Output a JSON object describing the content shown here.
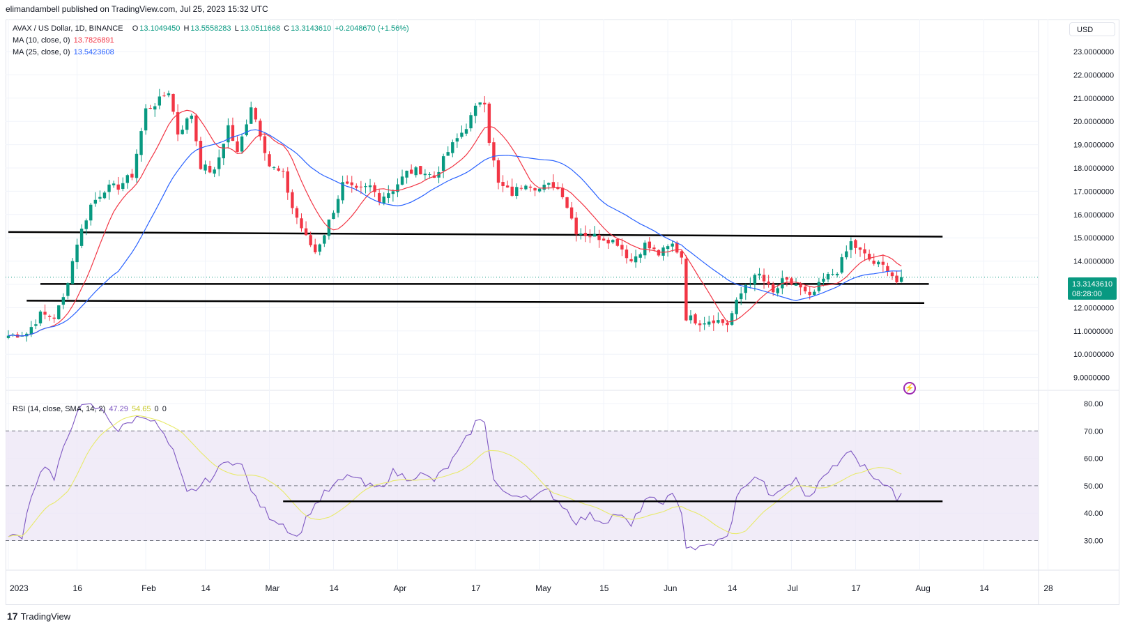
{
  "publisher_text": "elimandambell published on TradingView.com, Jul 25, 2023 15:32 UTC",
  "brand": "TradingView",
  "currency": "USD",
  "legend": {
    "symbol": "AVAX / US Dollar, 1D, BINANCE",
    "open_label": "O",
    "open": "13.1049450",
    "high_label": "H",
    "high": "13.5558283",
    "low_label": "L",
    "low": "13.0511668",
    "close_label": "C",
    "close": "13.3143610",
    "change": "+0.2048670 (+1.56%)",
    "ma10_label": "MA (10, close, 0)",
    "ma10_value": "13.7826891",
    "ma25_label": "MA (25, close, 0)",
    "ma25_value": "13.5423608",
    "rsi_label": "RSI (14, close, SMA, 14, 2)",
    "rsi_value": "47.29",
    "rsi_sma_value": "54.65",
    "rsi_extra1": "0",
    "rsi_extra2": "0"
  },
  "price_tag": {
    "price": "13.3143610",
    "countdown": "08:28:00"
  },
  "colors": {
    "up": "#089981",
    "down": "#f23645",
    "ma10": "#f23645",
    "ma25": "#2962ff",
    "rsi": "#7e57c2",
    "rsi_sma": "#e8ea6a",
    "rsi_band": "#ede7f6",
    "support": "#000000"
  },
  "chart_data": [
    {
      "type": "candlestick",
      "title": "AVAX / US Dollar, 1D, BINANCE",
      "y_ticks": [
        "23.0000000",
        "22.0000000",
        "21.0000000",
        "20.0000000",
        "19.0000000",
        "18.0000000",
        "17.0000000",
        "16.0000000",
        "15.0000000",
        "14.0000000",
        "13.0000000",
        "12.0000000",
        "11.0000000",
        "10.0000000",
        "9.0000000"
      ],
      "ylim": [
        9,
        23
      ],
      "x_ticks": [
        "2023",
        "16",
        "Feb",
        "14",
        "Mar",
        "14",
        "Apr",
        "17",
        "May",
        "15",
        "Jun",
        "14",
        "Jul",
        "17",
        "Aug",
        "14",
        "28"
      ],
      "close_anchors": [
        {
          "day": 0,
          "close": 10.8
        },
        {
          "day": 4,
          "close": 10.9
        },
        {
          "day": 7,
          "close": 11.7
        },
        {
          "day": 10,
          "close": 11.6
        },
        {
          "day": 12,
          "close": 12.4
        },
        {
          "day": 15,
          "close": 14.8
        },
        {
          "day": 18,
          "close": 16.4
        },
        {
          "day": 21,
          "close": 17.1
        },
        {
          "day": 24,
          "close": 17.2
        },
        {
          "day": 27,
          "close": 17.7
        },
        {
          "day": 30,
          "close": 20.5
        },
        {
          "day": 33,
          "close": 20.9
        },
        {
          "day": 35,
          "close": 21.3
        },
        {
          "day": 37,
          "close": 19.5
        },
        {
          "day": 40,
          "close": 20.3
        },
        {
          "day": 42,
          "close": 18.1
        },
        {
          "day": 45,
          "close": 17.8
        },
        {
          "day": 48,
          "close": 19.8
        },
        {
          "day": 50,
          "close": 18.6
        },
        {
          "day": 53,
          "close": 20.7
        },
        {
          "day": 55,
          "close": 19.5
        },
        {
          "day": 57,
          "close": 18.1
        },
        {
          "day": 60,
          "close": 17.7
        },
        {
          "day": 62,
          "close": 16.3
        },
        {
          "day": 65,
          "close": 15.0
        },
        {
          "day": 67,
          "close": 14.4
        },
        {
          "day": 69,
          "close": 15.2
        },
        {
          "day": 71,
          "close": 16.2
        },
        {
          "day": 73,
          "close": 17.3
        },
        {
          "day": 76,
          "close": 17.0
        },
        {
          "day": 79,
          "close": 17.2
        },
        {
          "day": 81,
          "close": 16.7
        },
        {
          "day": 84,
          "close": 17.1
        },
        {
          "day": 87,
          "close": 17.8
        },
        {
          "day": 90,
          "close": 17.9
        },
        {
          "day": 93,
          "close": 17.6
        },
        {
          "day": 96,
          "close": 18.7
        },
        {
          "day": 100,
          "close": 19.8
        },
        {
          "day": 103,
          "close": 20.9
        },
        {
          "day": 104,
          "close": 20.9
        },
        {
          "day": 105,
          "close": 19.2
        },
        {
          "day": 107,
          "close": 17.3
        },
        {
          "day": 110,
          "close": 16.9
        },
        {
          "day": 113,
          "close": 17.4
        },
        {
          "day": 116,
          "close": 17.1
        },
        {
          "day": 119,
          "close": 17.3
        },
        {
          "day": 121,
          "close": 16.9
        },
        {
          "day": 124,
          "close": 15.3
        },
        {
          "day": 127,
          "close": 15.1
        },
        {
          "day": 130,
          "close": 15.0
        },
        {
          "day": 133,
          "close": 14.8
        },
        {
          "day": 136,
          "close": 14.0
        },
        {
          "day": 139,
          "close": 14.7
        },
        {
          "day": 142,
          "close": 14.3
        },
        {
          "day": 145,
          "close": 14.7
        },
        {
          "day": 147,
          "close": 14.2
        },
        {
          "day": 148,
          "close": 11.6
        },
        {
          "day": 151,
          "close": 11.4
        },
        {
          "day": 154,
          "close": 11.5
        },
        {
          "day": 157,
          "close": 11.3
        },
        {
          "day": 159,
          "close": 12.2
        },
        {
          "day": 161,
          "close": 13.0
        },
        {
          "day": 164,
          "close": 13.4
        },
        {
          "day": 167,
          "close": 12.6
        },
        {
          "day": 169,
          "close": 13.1
        },
        {
          "day": 172,
          "close": 13.0
        },
        {
          "day": 175,
          "close": 12.4
        },
        {
          "day": 178,
          "close": 13.2
        },
        {
          "day": 181,
          "close": 13.6
        },
        {
          "day": 184,
          "close": 14.8
        },
        {
          "day": 186,
          "close": 14.4
        },
        {
          "day": 189,
          "close": 13.9
        },
        {
          "day": 192,
          "close": 13.7
        },
        {
          "day": 194,
          "close": 13.1
        },
        {
          "day": 195,
          "close": 13.31
        }
      ],
      "support_lines": [
        {
          "from_day": 0,
          "from": 15.25,
          "to_day": 204,
          "to": 15.05
        },
        {
          "from_day": 7,
          "from": 13.02,
          "to_day": 201,
          "to": 13.02
        },
        {
          "from_day": 4,
          "from": 12.3,
          "to_day": 200,
          "to": 12.2
        }
      ]
    },
    {
      "type": "line",
      "title": "RSI (14, close, SMA, 14, 2)",
      "y_ticks": [
        "80.00",
        "70.00",
        "60.00",
        "50.00",
        "40.00",
        "30.00"
      ],
      "ylim": [
        26,
        83
      ],
      "band": [
        30,
        70
      ],
      "midline": 50,
      "rsi_anchors": [
        {
          "day": 0,
          "v": 31
        },
        {
          "day": 3,
          "v": 32
        },
        {
          "day": 5,
          "v": 47
        },
        {
          "day": 8,
          "v": 58
        },
        {
          "day": 10,
          "v": 52
        },
        {
          "day": 12,
          "v": 63
        },
        {
          "day": 15,
          "v": 78
        },
        {
          "day": 18,
          "v": 79
        },
        {
          "day": 21,
          "v": 77
        },
        {
          "day": 24,
          "v": 70
        },
        {
          "day": 27,
          "v": 74
        },
        {
          "day": 30,
          "v": 76
        },
        {
          "day": 33,
          "v": 71
        },
        {
          "day": 36,
          "v": 62
        },
        {
          "day": 39,
          "v": 47
        },
        {
          "day": 42,
          "v": 50
        },
        {
          "day": 45,
          "v": 54
        },
        {
          "day": 48,
          "v": 60
        },
        {
          "day": 51,
          "v": 57
        },
        {
          "day": 54,
          "v": 45
        },
        {
          "day": 57,
          "v": 39
        },
        {
          "day": 60,
          "v": 36
        },
        {
          "day": 63,
          "v": 31
        },
        {
          "day": 66,
          "v": 41
        },
        {
          "day": 69,
          "v": 47
        },
        {
          "day": 72,
          "v": 51
        },
        {
          "day": 75,
          "v": 54
        },
        {
          "day": 78,
          "v": 50
        },
        {
          "day": 81,
          "v": 49
        },
        {
          "day": 84,
          "v": 55
        },
        {
          "day": 87,
          "v": 53
        },
        {
          "day": 90,
          "v": 54
        },
        {
          "day": 93,
          "v": 52
        },
        {
          "day": 96,
          "v": 57
        },
        {
          "day": 99,
          "v": 64
        },
        {
          "day": 102,
          "v": 73
        },
        {
          "day": 104,
          "v": 74
        },
        {
          "day": 106,
          "v": 52
        },
        {
          "day": 109,
          "v": 46
        },
        {
          "day": 112,
          "v": 47
        },
        {
          "day": 115,
          "v": 46
        },
        {
          "day": 118,
          "v": 48
        },
        {
          "day": 121,
          "v": 43
        },
        {
          "day": 124,
          "v": 37
        },
        {
          "day": 127,
          "v": 39
        },
        {
          "day": 130,
          "v": 37
        },
        {
          "day": 133,
          "v": 40
        },
        {
          "day": 136,
          "v": 35
        },
        {
          "day": 139,
          "v": 45
        },
        {
          "day": 142,
          "v": 44
        },
        {
          "day": 145,
          "v": 46
        },
        {
          "day": 147,
          "v": 41
        },
        {
          "day": 148,
          "v": 28
        },
        {
          "day": 151,
          "v": 27
        },
        {
          "day": 154,
          "v": 29
        },
        {
          "day": 157,
          "v": 31
        },
        {
          "day": 159,
          "v": 45
        },
        {
          "day": 161,
          "v": 51
        },
        {
          "day": 164,
          "v": 53
        },
        {
          "day": 167,
          "v": 45
        },
        {
          "day": 169,
          "v": 49
        },
        {
          "day": 172,
          "v": 52
        },
        {
          "day": 175,
          "v": 45
        },
        {
          "day": 178,
          "v": 55
        },
        {
          "day": 181,
          "v": 57
        },
        {
          "day": 184,
          "v": 64
        },
        {
          "day": 186,
          "v": 58
        },
        {
          "day": 189,
          "v": 54
        },
        {
          "day": 192,
          "v": 50
        },
        {
          "day": 194,
          "v": 45
        },
        {
          "day": 195,
          "v": 47.29
        }
      ],
      "support_line": {
        "from_day": 60,
        "from": 44.3,
        "to_day": 204,
        "to": 44.3
      }
    }
  ]
}
